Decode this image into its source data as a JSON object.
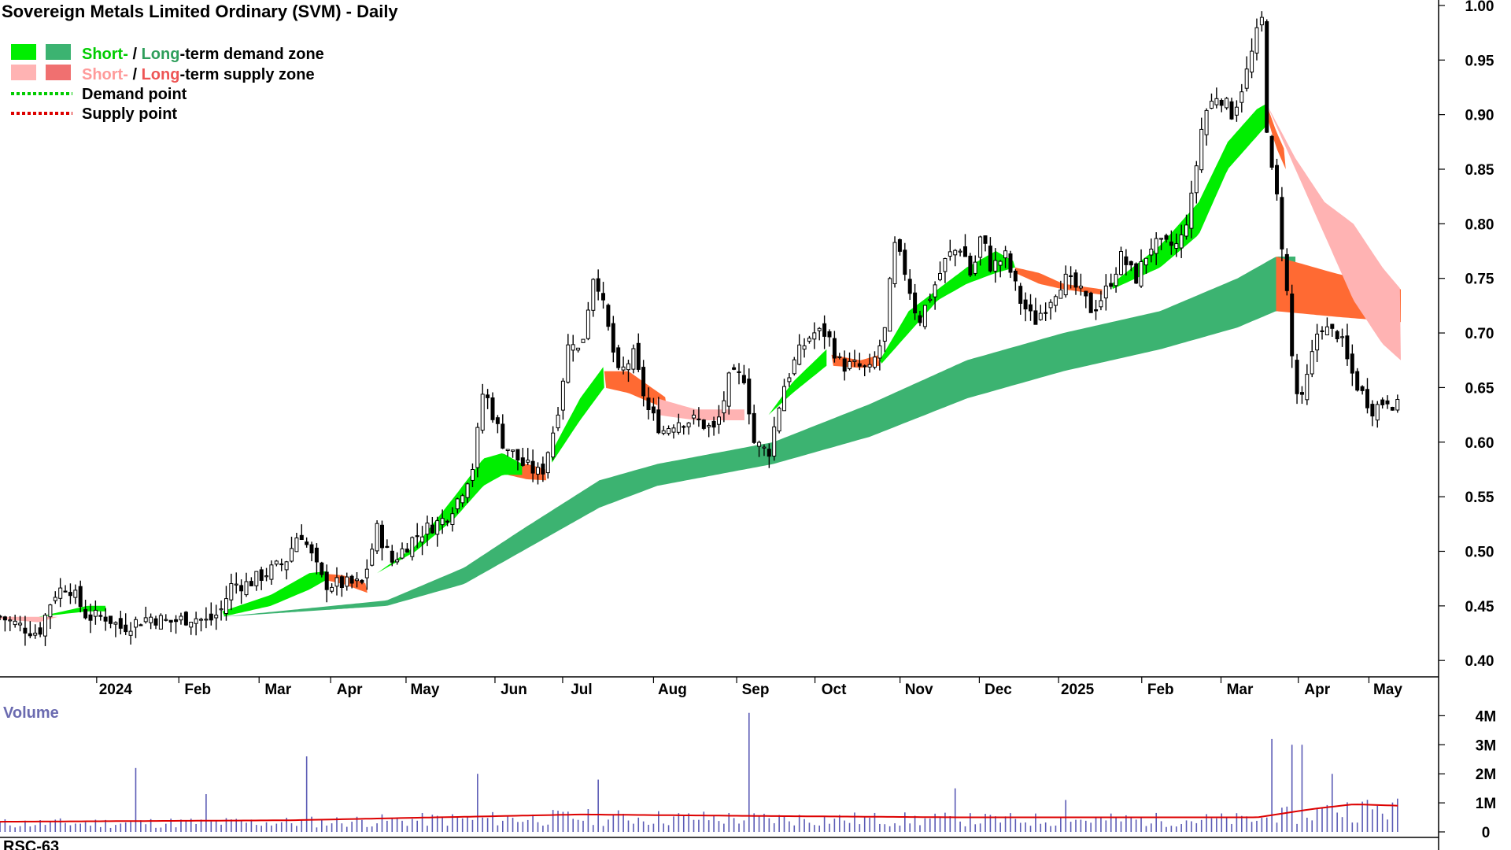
{
  "title": "Sovereign Metals Limited Ordinary (SVM) - Daily",
  "legend": {
    "demand_short": "Short-",
    "demand_sep": " / ",
    "demand_long": "Long",
    "demand_rest": "-term demand zone",
    "supply_short": "Short-",
    "supply_sep": " / ",
    "supply_long": "Long",
    "supply_rest": "-term supply zone",
    "demand_point": "Demand point",
    "supply_point": "Supply point"
  },
  "colors": {
    "short_demand": "#00ee00",
    "long_demand": "#3cb371",
    "short_supply": "#ffb3b3",
    "long_supply": "#ff6a33",
    "demand_point": "#00cc00",
    "supply_point": "#dd0000",
    "volume_bar": "#5b5bb5",
    "volume_ma": "#dd0000"
  },
  "volume_label": "Volume",
  "indicator_label": "RSC-63",
  "chart_data": {
    "type": "candlestick",
    "title": "Sovereign Metals Limited Ordinary (SVM) - Daily",
    "x_tick_labels": [
      "2024",
      "Feb",
      "Mar",
      "Apr",
      "May",
      "Jun",
      "Jul",
      "Aug",
      "Sep",
      "Oct",
      "Nov",
      "Dec",
      "2025",
      "Feb",
      "Mar",
      "Apr",
      "May"
    ],
    "y_tick_labels": [
      "0.40",
      "0.45",
      "0.50",
      "0.55",
      "0.60",
      "0.65",
      "0.70",
      "0.75",
      "0.80",
      "0.85",
      "0.90",
      "0.95",
      "1.00"
    ],
    "y_ticks": [
      0.4,
      0.45,
      0.5,
      0.55,
      0.6,
      0.65,
      0.7,
      0.75,
      0.8,
      0.85,
      0.9,
      0.95,
      1.0
    ],
    "ylim": [
      0.385,
      1.005
    ],
    "volume_tick_labels": [
      "4M",
      "3M",
      "2M",
      "1M",
      "0"
    ],
    "volume_ticks": [
      4,
      3,
      2,
      1,
      0
    ],
    "volume_ylim": [
      0,
      4.2
    ],
    "price_keypoints": [
      [
        0,
        0.44
      ],
      [
        25,
        0.43
      ],
      [
        40,
        0.425
      ],
      [
        55,
        0.46
      ],
      [
        70,
        0.47
      ],
      [
        90,
        0.44
      ],
      [
        110,
        0.44
      ],
      [
        125,
        0.43
      ],
      [
        140,
        0.435
      ],
      [
        155,
        0.44
      ],
      [
        175,
        0.435
      ],
      [
        200,
        0.44
      ],
      [
        215,
        0.435
      ],
      [
        228,
        0.445
      ],
      [
        240,
        0.47
      ],
      [
        255,
        0.47
      ],
      [
        275,
        0.48
      ],
      [
        295,
        0.49
      ],
      [
        310,
        0.52
      ],
      [
        320,
        0.5
      ],
      [
        335,
        0.47
      ],
      [
        355,
        0.47
      ],
      [
        375,
        0.47
      ],
      [
        390,
        0.52
      ],
      [
        405,
        0.49
      ],
      [
        425,
        0.51
      ],
      [
        440,
        0.52
      ],
      [
        460,
        0.53
      ],
      [
        475,
        0.55
      ],
      [
        490,
        0.58
      ],
      [
        500,
        0.65
      ],
      [
        520,
        0.6
      ],
      [
        540,
        0.58
      ],
      [
        560,
        0.57
      ],
      [
        575,
        0.62
      ],
      [
        590,
        0.7
      ],
      [
        600,
        0.68
      ],
      [
        615,
        0.76
      ],
      [
        625,
        0.72
      ],
      [
        640,
        0.66
      ],
      [
        655,
        0.68
      ],
      [
        670,
        0.63
      ],
      [
        685,
        0.61
      ],
      [
        700,
        0.62
      ],
      [
        720,
        0.62
      ],
      [
        740,
        0.61
      ],
      [
        755,
        0.66
      ],
      [
        770,
        0.66
      ],
      [
        780,
        0.6
      ],
      [
        795,
        0.59
      ],
      [
        810,
        0.65
      ],
      [
        825,
        0.68
      ],
      [
        840,
        0.7
      ],
      [
        855,
        0.7
      ],
      [
        870,
        0.67
      ],
      [
        885,
        0.67
      ],
      [
        900,
        0.665
      ],
      [
        915,
        0.7
      ],
      [
        925,
        0.78
      ],
      [
        935,
        0.76
      ],
      [
        950,
        0.71
      ],
      [
        965,
        0.74
      ],
      [
        980,
        0.77
      ],
      [
        995,
        0.78
      ],
      [
        1005,
        0.75
      ],
      [
        1015,
        0.79
      ],
      [
        1025,
        0.76
      ],
      [
        1040,
        0.77
      ],
      [
        1055,
        0.73
      ],
      [
        1070,
        0.71
      ],
      [
        1085,
        0.73
      ],
      [
        1100,
        0.75
      ],
      [
        1115,
        0.74
      ],
      [
        1130,
        0.72
      ],
      [
        1145,
        0.74
      ],
      [
        1160,
        0.77
      ],
      [
        1175,
        0.75
      ],
      [
        1190,
        0.78
      ],
      [
        1205,
        0.78
      ],
      [
        1220,
        0.78
      ],
      [
        1232,
        0.82
      ],
      [
        1245,
        0.9
      ],
      [
        1260,
        0.92
      ],
      [
        1275,
        0.9
      ],
      [
        1290,
        0.94
      ],
      [
        1305,
        0.99
      ],
      [
        1312,
        0.86
      ],
      [
        1320,
        0.83
      ],
      [
        1330,
        0.75
      ],
      [
        1338,
        0.66
      ],
      [
        1345,
        0.63
      ],
      [
        1355,
        0.67
      ],
      [
        1365,
        0.71
      ],
      [
        1375,
        0.7
      ],
      [
        1385,
        0.7
      ],
      [
        1395,
        0.67
      ],
      [
        1405,
        0.65
      ],
      [
        1420,
        0.63
      ],
      [
        1435,
        0.64
      ],
      [
        1449,
        0.63
      ]
    ],
    "long_demand_zone": {
      "bottom": [
        [
          230,
          0.44
        ],
        [
          400,
          0.45
        ],
        [
          480,
          0.47
        ],
        [
          540,
          0.5
        ],
        [
          620,
          0.54
        ],
        [
          680,
          0.56
        ],
        [
          800,
          0.58
        ],
        [
          900,
          0.605
        ],
        [
          1000,
          0.64
        ],
        [
          1100,
          0.665
        ],
        [
          1200,
          0.685
        ],
        [
          1280,
          0.705
        ],
        [
          1320,
          0.72
        ],
        [
          1340,
          0.72
        ]
      ],
      "top": [
        [
          230,
          0.44
        ],
        [
          400,
          0.455
        ],
        [
          480,
          0.485
        ],
        [
          540,
          0.52
        ],
        [
          620,
          0.565
        ],
        [
          680,
          0.58
        ],
        [
          800,
          0.6
        ],
        [
          900,
          0.635
        ],
        [
          1000,
          0.675
        ],
        [
          1100,
          0.7
        ],
        [
          1200,
          0.72
        ],
        [
          1280,
          0.75
        ],
        [
          1320,
          0.77
        ],
        [
          1340,
          0.77
        ]
      ]
    },
    "long_supply_zone": {
      "bottom": [
        [
          1320,
          0.72
        ],
        [
          1380,
          0.715
        ],
        [
          1449,
          0.71
        ]
      ],
      "top": [
        [
          1320,
          0.77
        ],
        [
          1380,
          0.755
        ],
        [
          1449,
          0.74
        ]
      ]
    },
    "short_demand_zone": [
      {
        "bottom": [
          [
            40,
            0.44
          ],
          [
            90,
            0.445
          ],
          [
            110,
            0.445
          ]
        ],
        "top": [
          [
            40,
            0.44
          ],
          [
            90,
            0.45
          ],
          [
            110,
            0.45
          ]
        ]
      },
      {
        "bottom": [
          [
            230,
            0.44
          ],
          [
            280,
            0.45
          ],
          [
            320,
            0.465
          ],
          [
            340,
            0.475
          ]
        ],
        "top": [
          [
            230,
            0.445
          ],
          [
            280,
            0.46
          ],
          [
            320,
            0.48
          ],
          [
            340,
            0.482
          ]
        ]
      },
      {
        "bottom": [
          [
            390,
            0.48
          ],
          [
            430,
            0.5
          ],
          [
            470,
            0.53
          ],
          [
            500,
            0.56
          ],
          [
            520,
            0.57
          ],
          [
            540,
            0.57
          ]
        ],
        "top": [
          [
            390,
            0.48
          ],
          [
            430,
            0.505
          ],
          [
            470,
            0.55
          ],
          [
            500,
            0.585
          ],
          [
            520,
            0.59
          ],
          [
            540,
            0.58
          ]
        ]
      },
      {
        "bottom": [
          [
            570,
            0.58
          ],
          [
            600,
            0.62
          ],
          [
            625,
            0.65
          ]
        ],
        "top": [
          [
            570,
            0.59
          ],
          [
            600,
            0.64
          ],
          [
            625,
            0.67
          ]
        ]
      },
      {
        "bottom": [
          [
            795,
            0.625
          ],
          [
            820,
            0.645
          ],
          [
            855,
            0.67
          ]
        ],
        "top": [
          [
            795,
            0.625
          ],
          [
            820,
            0.655
          ],
          [
            855,
            0.685
          ]
        ]
      },
      {
        "bottom": [
          [
            910,
            0.67
          ],
          [
            940,
            0.7
          ],
          [
            970,
            0.73
          ],
          [
            1000,
            0.745
          ],
          [
            1030,
            0.755
          ],
          [
            1050,
            0.76
          ]
        ],
        "top": [
          [
            910,
            0.675
          ],
          [
            940,
            0.72
          ],
          [
            970,
            0.74
          ],
          [
            1000,
            0.76
          ],
          [
            1030,
            0.775
          ],
          [
            1050,
            0.765
          ]
        ]
      },
      {
        "bottom": [
          [
            1150,
            0.74
          ],
          [
            1200,
            0.76
          ],
          [
            1240,
            0.79
          ],
          [
            1270,
            0.85
          ],
          [
            1300,
            0.88
          ],
          [
            1310,
            0.89
          ]
        ],
        "top": [
          [
            1150,
            0.745
          ],
          [
            1200,
            0.78
          ],
          [
            1240,
            0.82
          ],
          [
            1270,
            0.875
          ],
          [
            1300,
            0.905
          ],
          [
            1310,
            0.91
          ]
        ]
      }
    ],
    "short_supply_zone": [
      {
        "bottom": [
          [
            0,
            0.438
          ],
          [
            40,
            0.435
          ],
          [
            60,
            0.44
          ]
        ],
        "top": [
          [
            0,
            0.44
          ],
          [
            40,
            0.44
          ],
          [
            60,
            0.44
          ]
        ]
      },
      {
        "bottom": [
          [
            680,
            0.625
          ],
          [
            720,
            0.62
          ],
          [
            770,
            0.62
          ]
        ],
        "top": [
          [
            680,
            0.64
          ],
          [
            720,
            0.63
          ],
          [
            770,
            0.63
          ]
        ]
      },
      {
        "bottom": [
          [
            1310,
            0.91
          ],
          [
            1340,
            0.85
          ],
          [
            1370,
            0.79
          ],
          [
            1400,
            0.73
          ],
          [
            1430,
            0.69
          ],
          [
            1449,
            0.675
          ]
        ],
        "top": [
          [
            1310,
            0.91
          ],
          [
            1340,
            0.86
          ],
          [
            1370,
            0.82
          ],
          [
            1400,
            0.8
          ],
          [
            1430,
            0.76
          ],
          [
            1449,
            0.74
          ]
        ]
      }
    ],
    "orange_supply_patches": [
      {
        "bottom": [
          [
            330,
            0.475
          ],
          [
            355,
            0.47
          ],
          [
            380,
            0.462
          ]
        ],
        "top": [
          [
            330,
            0.48
          ],
          [
            355,
            0.478
          ],
          [
            380,
            0.47
          ]
        ]
      },
      {
        "bottom": [
          [
            525,
            0.57
          ],
          [
            545,
            0.566
          ],
          [
            565,
            0.565
          ]
        ],
        "top": [
          [
            525,
            0.58
          ],
          [
            545,
            0.58
          ],
          [
            565,
            0.575
          ]
        ]
      },
      {
        "bottom": [
          [
            625,
            0.65
          ],
          [
            650,
            0.645
          ],
          [
            690,
            0.63
          ]
        ],
        "top": [
          [
            625,
            0.665
          ],
          [
            650,
            0.665
          ],
          [
            690,
            0.64
          ]
        ]
      },
      {
        "bottom": [
          [
            860,
            0.67
          ],
          [
            890,
            0.668
          ],
          [
            910,
            0.67
          ]
        ],
        "top": [
          [
            860,
            0.68
          ],
          [
            890,
            0.675
          ],
          [
            910,
            0.68
          ]
        ]
      },
      {
        "bottom": [
          [
            1050,
            0.755
          ],
          [
            1075,
            0.745
          ],
          [
            1100,
            0.74
          ],
          [
            1140,
            0.735
          ]
        ],
        "top": [
          [
            1050,
            0.76
          ],
          [
            1075,
            0.755
          ],
          [
            1100,
            0.745
          ],
          [
            1140,
            0.74
          ]
        ]
      },
      {
        "bottom": [
          [
            1310,
            0.9
          ],
          [
            1320,
            0.87
          ],
          [
            1330,
            0.85
          ]
        ],
        "top": [
          [
            1310,
            0.91
          ],
          [
            1320,
            0.885
          ],
          [
            1330,
            0.865
          ]
        ]
      }
    ],
    "volume_ma": [
      [
        0,
        0.35
      ],
      [
        300,
        0.4
      ],
      [
        600,
        0.6
      ],
      [
        780,
        0.55
      ],
      [
        1000,
        0.5
      ],
      [
        1300,
        0.5
      ],
      [
        1360,
        0.8
      ],
      [
        1400,
        0.95
      ],
      [
        1449,
        0.9
      ]
    ],
    "volume_spikes": [
      [
        140,
        2.2
      ],
      [
        215,
        1.3
      ],
      [
        315,
        2.6
      ],
      [
        495,
        2.0
      ],
      [
        620,
        1.8
      ],
      [
        775,
        4.1
      ],
      [
        990,
        1.5
      ],
      [
        1100,
        1.1
      ],
      [
        1315,
        3.2
      ],
      [
        1335,
        3.0
      ],
      [
        1345,
        3.0
      ],
      [
        1380,
        2.0
      ]
    ]
  }
}
